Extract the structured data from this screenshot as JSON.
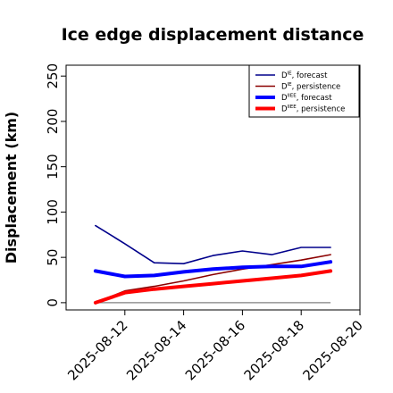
{
  "chart_data": {
    "type": "line",
    "title": "Ice edge displacement distance",
    "ylabel": "Displacement (km)",
    "xlabel": "",
    "ylim": [
      -8,
      262
    ],
    "yticks": [
      0,
      50,
      100,
      150,
      200,
      250
    ],
    "xlim": [
      "2025-08-10",
      "2025-08-20"
    ],
    "xticks": [
      "2025-08-12",
      "2025-08-14",
      "2025-08-16",
      "2025-08-18",
      "2025-08-20"
    ],
    "highlighted_xtick": "2025-08-12",
    "highlight_color": "#228b22",
    "zero_line": true,
    "legend_position": "top-right",
    "x": [
      "2025-08-11",
      "2025-08-12",
      "2025-08-13",
      "2025-08-14",
      "2025-08-15",
      "2025-08-16",
      "2025-08-17",
      "2025-08-18",
      "2025-08-19"
    ],
    "series": [
      {
        "name": "D^IE, forecast",
        "color": "#00008b",
        "width": 1.6,
        "values": [
          85,
          65,
          44,
          43,
          52,
          57,
          53,
          61,
          61
        ]
      },
      {
        "name": "D^IE, persistence",
        "color": "#8b0000",
        "width": 1.6,
        "values": [
          0,
          13,
          18,
          24,
          31,
          37,
          42,
          47,
          53
        ]
      },
      {
        "name": "D^IIEE, forecast",
        "color": "#0000ff",
        "width": 4,
        "values": [
          35,
          29,
          30,
          34,
          37,
          39,
          40,
          40,
          45
        ]
      },
      {
        "name": "D^IIEE, persistence",
        "color": "#ff0000",
        "width": 4,
        "values": [
          0,
          11,
          15,
          18,
          21,
          24,
          27,
          30,
          35
        ]
      }
    ],
    "legend": [
      {
        "base": "D",
        "sup": "IE",
        "suffix": ", forecast"
      },
      {
        "base": "D",
        "sup": "IE",
        "suffix": ", persistence"
      },
      {
        "base": "D",
        "sup": "IIEE",
        "suffix": ", forecast"
      },
      {
        "base": "D",
        "sup": "IIEE",
        "suffix": ", persistence"
      }
    ]
  }
}
